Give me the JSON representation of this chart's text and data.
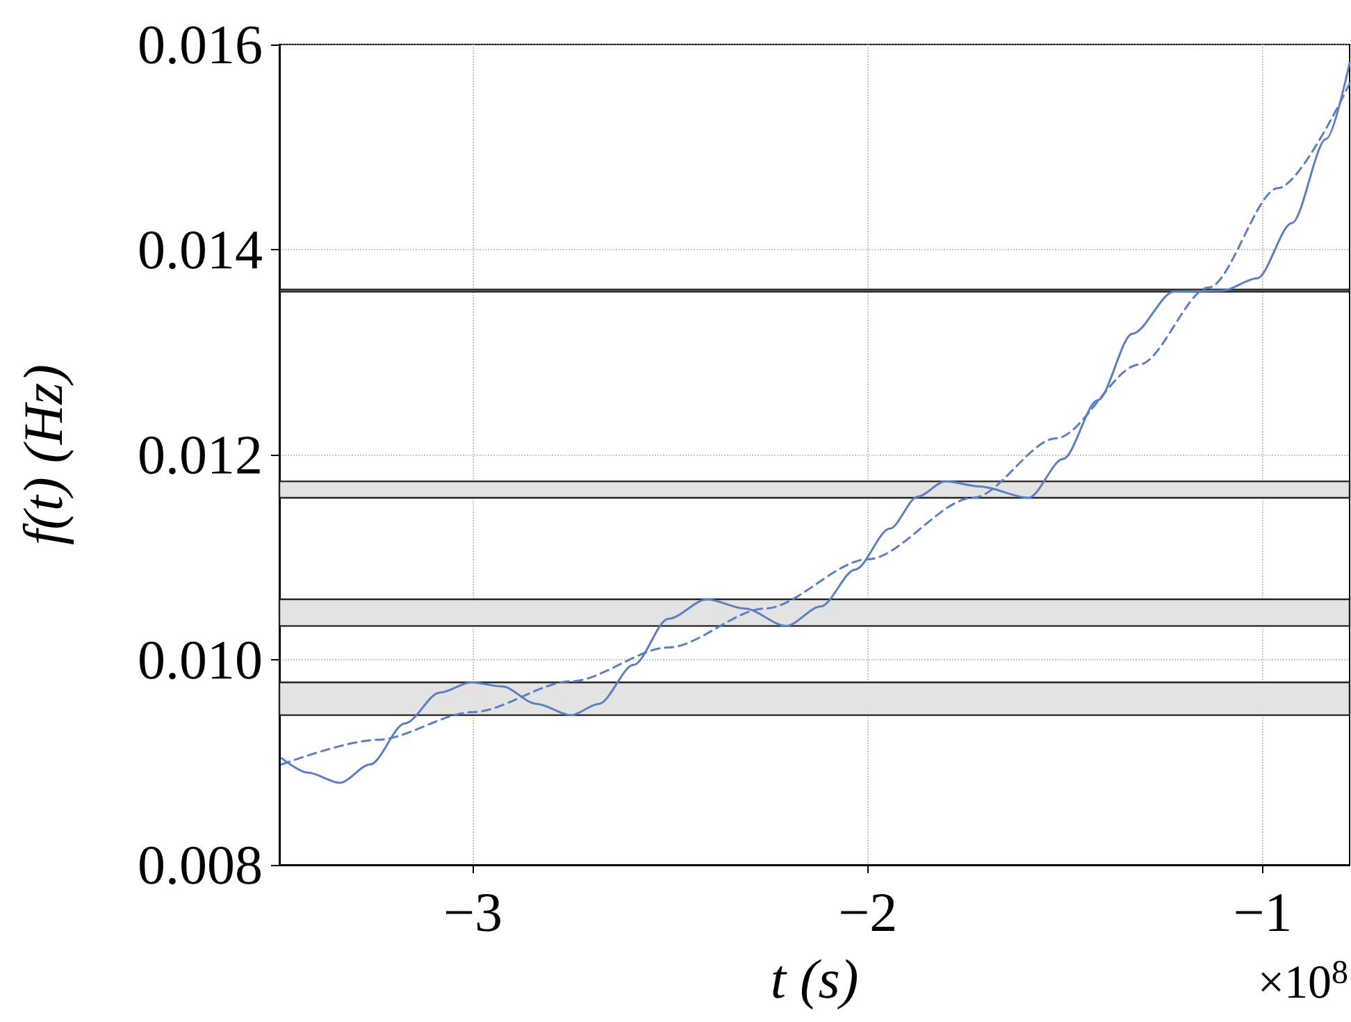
{
  "chart_data": {
    "type": "line",
    "xlabel": "t (s)",
    "ylabel": "f(t) (Hz)",
    "annotations": [
      "×10$^{8}$"
    ],
    "xlim": [
      -3.49,
      -0.78
    ],
    "ylim": [
      0.008,
      0.016
    ],
    "xticks": [
      {
        "value": -3,
        "label": "−3"
      },
      {
        "value": -2,
        "label": "−2"
      },
      {
        "value": -1,
        "label": "−1"
      }
    ],
    "yticks": [
      {
        "value": 0.008,
        "label": "0.008"
      },
      {
        "value": 0.01,
        "label": "0.010"
      },
      {
        "value": 0.012,
        "label": "0.012"
      },
      {
        "value": 0.014,
        "label": "0.014"
      },
      {
        "value": 0.016,
        "label": "0.016"
      }
    ],
    "grid": true,
    "marker": "none",
    "series": [
      {
        "color": "#5b7fc0",
        "line_style": "solid",
        "x": [
          -3.484,
          -3.418,
          -3.337,
          -3.26,
          -3.172,
          -3.084,
          -3.004,
          -2.926,
          -2.839,
          -2.751,
          -2.681,
          -2.593,
          -2.505,
          -2.407,
          -2.312,
          -2.207,
          -2.119,
          -2.032,
          -1.944,
          -1.874,
          -1.804,
          -1.716,
          -1.593,
          -1.505,
          -1.418,
          -1.33,
          -1.225,
          -1.102,
          -1.014,
          -0.926,
          -0.839,
          -0.78
        ],
        "values": [
          0.00904,
          0.0089,
          0.0088,
          0.00898,
          0.00938,
          0.00968,
          0.00978,
          0.00974,
          0.00957,
          0.00946,
          0.00957,
          0.00995,
          0.0104,
          0.01059,
          0.0105,
          0.01033,
          0.01052,
          0.01088,
          0.01128,
          0.01159,
          0.01174,
          0.01169,
          0.01158,
          0.01196,
          0.01253,
          0.01318,
          0.01359,
          0.0136,
          0.01372,
          0.01426,
          0.01508,
          0.01582
        ]
      },
      {
        "color": "#5b7fc0",
        "line_style": "dashed",
        "x": [
          -3.484,
          -3.242,
          -3.0,
          -2.751,
          -2.505,
          -2.26,
          -2.0,
          -1.733,
          -1.523,
          -1.312,
          -1.137,
          -0.961,
          -0.78
        ],
        "values": [
          0.00898,
          0.00922,
          0.00949,
          0.00979,
          0.01012,
          0.0105,
          0.01098,
          0.01158,
          0.01216,
          0.01288,
          0.01363,
          0.0146,
          0.01562
        ]
      }
    ],
    "bands": [
      {
        "axis": "y",
        "from": 0.01359,
        "to": 0.01361,
        "color": "#e3e3e3"
      },
      {
        "axis": "y",
        "from": 0.01158,
        "to": 0.01174,
        "color": "#e3e3e3"
      },
      {
        "axis": "y",
        "from": 0.01033,
        "to": 0.01059,
        "color": "#e3e3e3"
      },
      {
        "axis": "y",
        "from": 0.00946,
        "to": 0.00978,
        "color": "#e3e3e3"
      }
    ]
  }
}
